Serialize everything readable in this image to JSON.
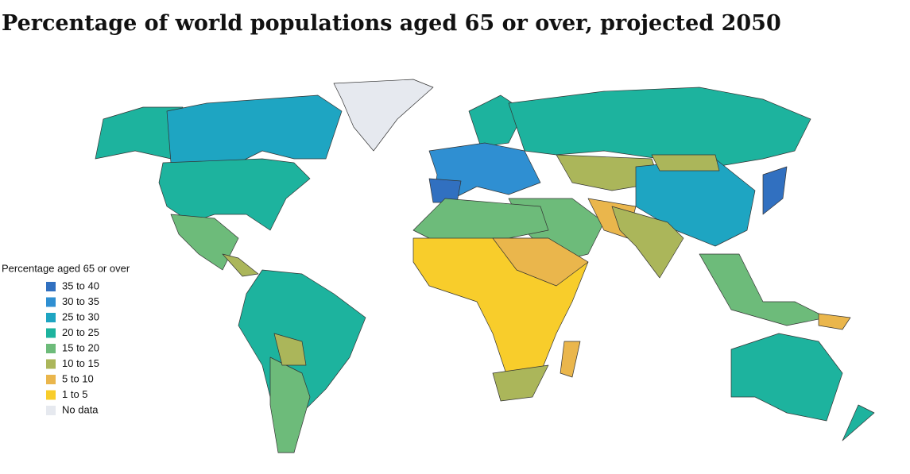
{
  "title": "Percentage of world populations aged 65 or over, projected 2050",
  "legend": {
    "title": "Percentage aged 65 or over",
    "items": [
      {
        "label": "35 to 40",
        "color": "#3170c0"
      },
      {
        "label": "30 to 35",
        "color": "#2f8fd2"
      },
      {
        "label": "25 to 30",
        "color": "#1ea5c2"
      },
      {
        "label": "20 to 25",
        "color": "#1db39e"
      },
      {
        "label": "15 to 20",
        "color": "#6dbb7a"
      },
      {
        "label": "10 to 15",
        "color": "#abb65a"
      },
      {
        "label": "5 to 10",
        "color": "#eab64c"
      },
      {
        "label": "1 to 5",
        "color": "#f8cd2b"
      },
      {
        "label": "No data",
        "color": "#e6e9ef"
      }
    ]
  }
}
